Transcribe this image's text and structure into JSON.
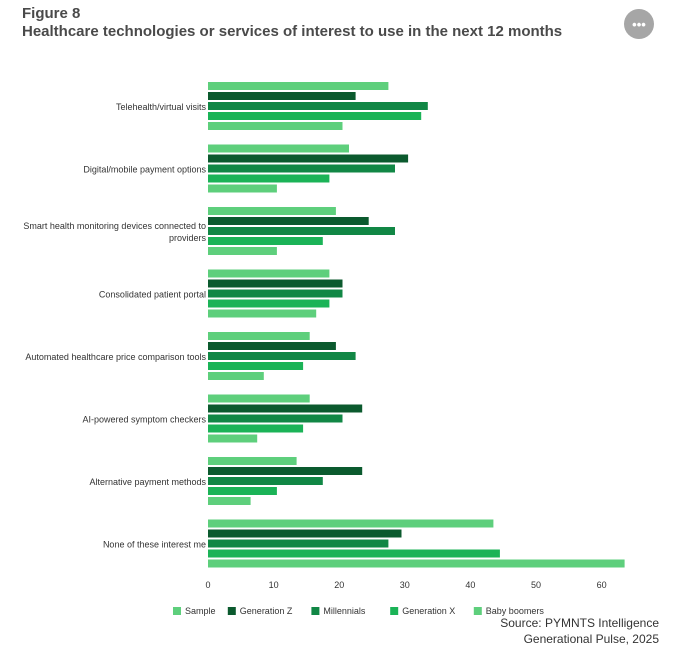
{
  "figure": {
    "label": "Figure 8",
    "title": "Healthcare technologies or services of interest to use in the next 12 months",
    "menu_icon": "ellipsis-icon",
    "menu_glyph": "•••"
  },
  "source": {
    "line1": "Source: PYMNTS Intelligence",
    "line2": "Generational Pulse, 2025"
  },
  "chart_data": {
    "type": "bar",
    "orientation": "horizontal",
    "categories": [
      "Telehealth/virtual visits",
      "Digital/mobile payment options",
      "Smart health monitoring devices connected to providers",
      "Consolidated patient portal",
      "Automated healthcare price comparison tools",
      "AI-powered symptom checkers",
      "Alternative payment methods",
      "None of these interest me"
    ],
    "category_lines": [
      [
        "Telehealth/virtual visits"
      ],
      [
        "Digital/mobile payment options"
      ],
      [
        "Smart health monitoring devices connected to",
        "providers"
      ],
      [
        "Consolidated patient portal"
      ],
      [
        "Automated healthcare price comparison tools"
      ],
      [
        "AI-powered symptom checkers"
      ],
      [
        "Alternative payment methods"
      ],
      [
        "None of these interest me"
      ]
    ],
    "series": [
      {
        "name": "Sample",
        "color": "#5ecf7c",
        "values": [
          27.5,
          21.5,
          19.5,
          18.5,
          15.5,
          15.5,
          13.5,
          43.5
        ]
      },
      {
        "name": "Generation Z",
        "color": "#0b5a2e",
        "values": [
          22.5,
          30.5,
          24.5,
          20.5,
          19.5,
          23.5,
          23.5,
          29.5
        ]
      },
      {
        "name": "Millennials",
        "color": "#118745",
        "values": [
          33.5,
          28.5,
          28.5,
          20.5,
          22.5,
          20.5,
          17.5,
          27.5
        ]
      },
      {
        "name": "Generation X",
        "color": "#1bb357",
        "values": [
          32.5,
          18.5,
          17.5,
          18.5,
          14.5,
          14.5,
          10.5,
          44.5
        ]
      },
      {
        "name": "Baby boomers",
        "color": "#5ecf7c",
        "values": [
          20.5,
          10.5,
          10.5,
          16.5,
          8.5,
          7.5,
          6.5,
          63.5
        ]
      }
    ],
    "x_ticks": [
      0,
      10,
      20,
      30,
      40,
      50,
      60
    ],
    "xlim": [
      0,
      65
    ],
    "xlabel": "",
    "ylabel": "",
    "grid": false,
    "legend_position": "bottom-left"
  }
}
